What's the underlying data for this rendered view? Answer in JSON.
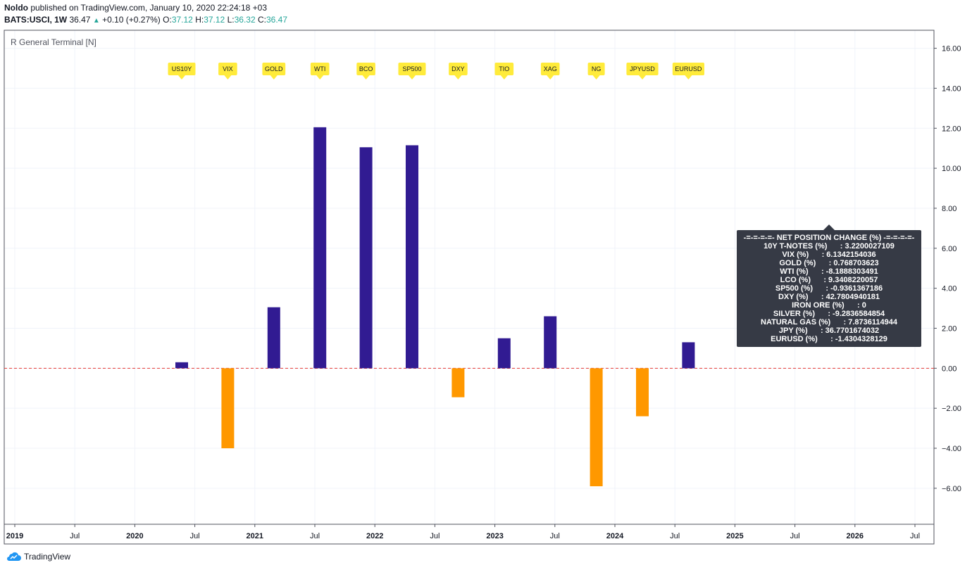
{
  "header": {
    "author": "Noldo",
    "published": " published on TradingView.com, January 10, 2020 22:24:18 +03",
    "symbol": "BATS:USCI, 1W",
    "price": "36.47",
    "change": "+0.10 (+0.27%)",
    "o_label": "O:",
    "o_val": "37.12",
    "h_label": "H:",
    "h_val": "37.12",
    "l_label": "L:",
    "l_val": "36.32",
    "c_label": "C:",
    "c_val": "36.47"
  },
  "indicator_label": "R General Terminal [N]",
  "brand": "TradingView",
  "tooltip": {
    "lines": [
      "-=-=-=-=- NET POSITION CHANGE (%) -=-=-=-=-",
      "10Y T-NOTES (%)      : 3.2200027109",
      "VIX (%)      : 6.1342154036",
      "GOLD (%)      : 0.768703623",
      "WTI (%)      : -8.1888303491",
      "LCO (%)      : 9.3408220057",
      "SP500 (%)      : -0.9361367186",
      "DXY (%)      : 42.7804940181",
      "IRON ORE (%)      : 0",
      "SILVER (%)      : -9.2836584854",
      "NATURAL GAS (%)      : 7.8736114944",
      "JPY (%)      : 36.7701674032",
      "EURUSD (%)      : -1.4304328129"
    ]
  },
  "chart_data": {
    "type": "bar",
    "categories": [
      "US10Y",
      "VIX",
      "GOLD",
      "WTI",
      "BCO",
      "SP500",
      "DXY",
      "TIO",
      "XAG",
      "NG",
      "JPYUSD",
      "EURUSD"
    ],
    "values": [
      0.3,
      -4.0,
      3.05,
      12.05,
      11.05,
      11.15,
      -1.45,
      1.5,
      2.6,
      -5.9,
      -2.4,
      1.3
    ],
    "colors": [
      "#311b92",
      "#ff9800",
      "#311b92",
      "#311b92",
      "#311b92",
      "#311b92",
      "#ff9800",
      "#311b92",
      "#311b92",
      "#ff9800",
      "#ff9800",
      "#311b92"
    ],
    "positive_color": "#311b92",
    "negative_color": "#ff9800",
    "label_color": "#ffeb3b",
    "zero_line_color": "#e53935",
    "ylim": [
      -7.8,
      16.9
    ],
    "yticks": [
      "16.00",
      "14.00",
      "12.00",
      "10.00",
      "8.00",
      "6.00",
      "4.00",
      "2.00",
      "0.00",
      "−2.00",
      "−4.00",
      "−6.00"
    ],
    "ytick_values": [
      16,
      14,
      12,
      10,
      8,
      6,
      4,
      2,
      0,
      -2,
      -4,
      -6
    ],
    "xticks": [
      "2019",
      "Jul",
      "2020",
      "Jul",
      "2021",
      "Jul",
      "2022",
      "Jul",
      "2023",
      "Jul",
      "2024",
      "Jul",
      "2025",
      "Jul",
      "2026",
      "Jul"
    ],
    "xtick_bold": [
      true,
      false,
      true,
      false,
      true,
      false,
      true,
      false,
      true,
      false,
      true,
      false,
      true,
      false,
      true,
      false
    ],
    "grid": true
  }
}
